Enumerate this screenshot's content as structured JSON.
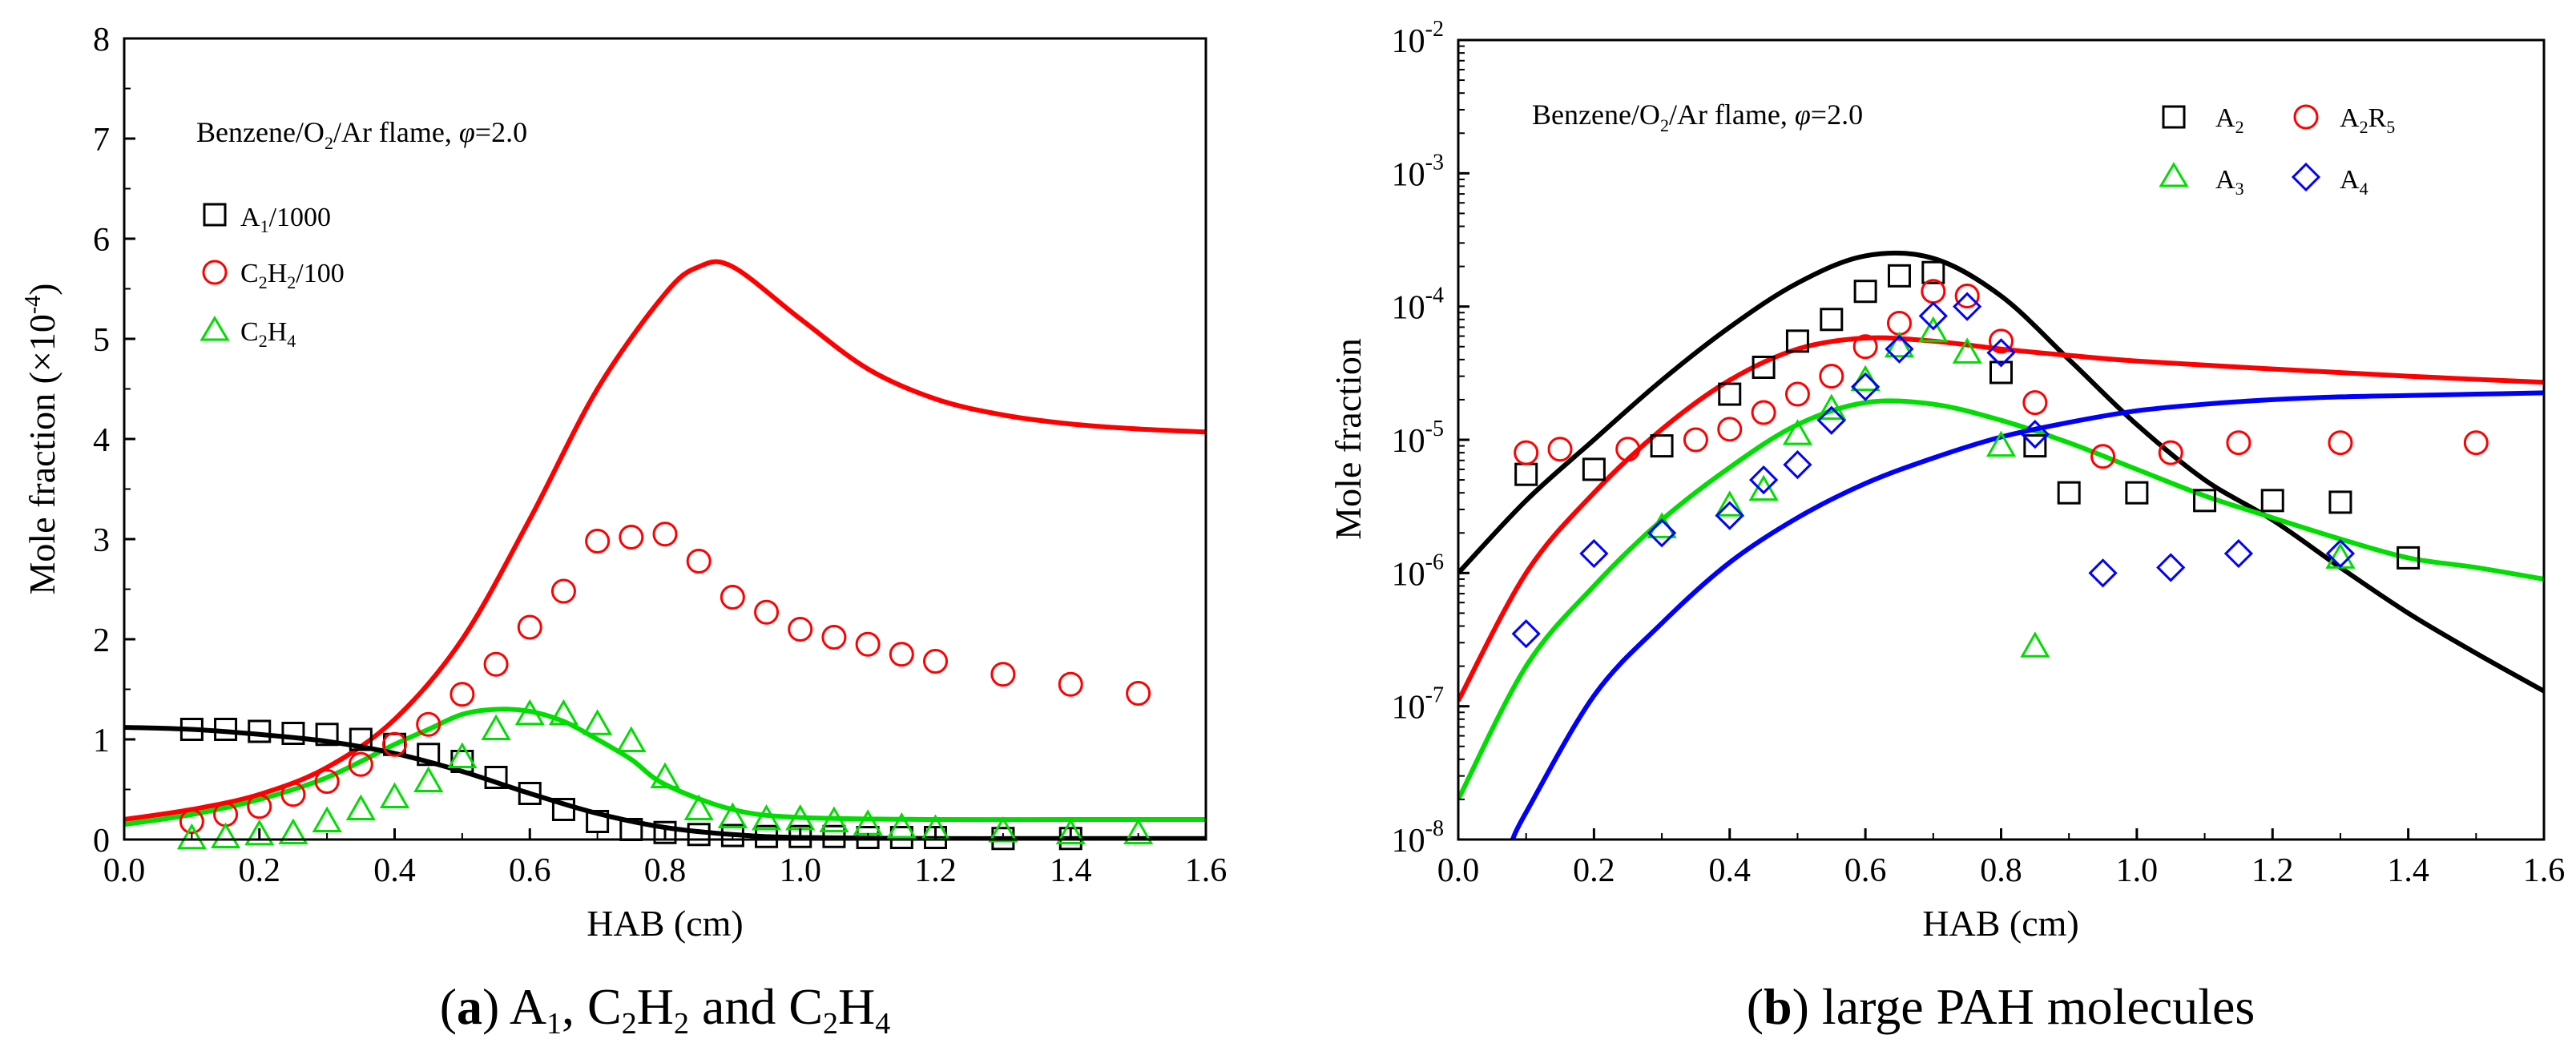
{
  "chart_data": [
    {
      "type": "scatter",
      "panel": "a",
      "caption": {
        "letter": "a",
        "text": "A1, C2H2 and C2H4"
      },
      "annotation": "Benzene/O2/Ar flame, φ=2.0",
      "xlabel": "HAB (cm)",
      "ylabel": "Mole fraction (×10⁻⁴)",
      "xlim": [
        0,
        1.6
      ],
      "ylim": [
        0,
        8
      ],
      "xticks": [
        "0.0",
        "0.2",
        "0.4",
        "0.6",
        "0.8",
        "1.0",
        "1.2",
        "1.4",
        "1.6"
      ],
      "yticks": [
        "0",
        "1",
        "2",
        "3",
        "4",
        "5",
        "6",
        "7",
        "8"
      ],
      "grid": false,
      "legend_position": "upper-left",
      "series": [
        {
          "name": "A1/1000",
          "marker": "square",
          "color": "#000000",
          "x": [
            0.1,
            0.15,
            0.2,
            0.25,
            0.3,
            0.35,
            0.4,
            0.45,
            0.5,
            0.55,
            0.6,
            0.65,
            0.7,
            0.75,
            0.8,
            0.85,
            0.9,
            0.95,
            1.0,
            1.05,
            1.1,
            1.15,
            1.2,
            1.3,
            1.4
          ],
          "y": [
            1.1,
            1.1,
            1.08,
            1.06,
            1.05,
            1.0,
            0.95,
            0.85,
            0.78,
            0.62,
            0.46,
            0.3,
            0.18,
            0.1,
            0.07,
            0.05,
            0.04,
            0.03,
            0.03,
            0.03,
            0.02,
            0.02,
            0.02,
            0.01,
            0.01
          ]
        },
        {
          "name": "C2H2/100",
          "marker": "circle",
          "color": "#ff0000",
          "x": [
            0.1,
            0.15,
            0.2,
            0.25,
            0.3,
            0.35,
            0.4,
            0.45,
            0.5,
            0.55,
            0.6,
            0.65,
            0.7,
            0.75,
            0.8,
            0.85,
            0.9,
            0.95,
            1.0,
            1.05,
            1.1,
            1.15,
            1.2,
            1.3,
            1.4,
            1.5
          ],
          "y": [
            0.18,
            0.25,
            0.33,
            0.45,
            0.58,
            0.75,
            0.95,
            1.15,
            1.45,
            1.75,
            2.12,
            2.48,
            2.98,
            3.02,
            3.05,
            2.78,
            2.42,
            2.27,
            2.1,
            2.02,
            1.95,
            1.85,
            1.78,
            1.65,
            1.55,
            1.46
          ]
        },
        {
          "name": "C2H4",
          "marker": "triangle",
          "color": "#00dd00",
          "x": [
            0.1,
            0.15,
            0.2,
            0.25,
            0.3,
            0.35,
            0.4,
            0.45,
            0.5,
            0.55,
            0.6,
            0.65,
            0.7,
            0.75,
            0.8,
            0.85,
            0.9,
            0.95,
            1.0,
            1.05,
            1.1,
            1.15,
            1.2,
            1.3,
            1.4,
            1.5
          ],
          "y": [
            0.01,
            0.02,
            0.05,
            0.06,
            0.18,
            0.3,
            0.42,
            0.58,
            0.82,
            1.1,
            1.25,
            1.25,
            1.15,
            0.98,
            0.62,
            0.3,
            0.22,
            0.2,
            0.2,
            0.18,
            0.15,
            0.12,
            0.1,
            0.08,
            0.06,
            0.06
          ]
        }
      ],
      "lines": [
        {
          "color": "#ff0000",
          "x": [
            0,
            0.1,
            0.2,
            0.3,
            0.4,
            0.5,
            0.6,
            0.7,
            0.8,
            0.85,
            0.9,
            1.0,
            1.1,
            1.2,
            1.3,
            1.4,
            1.5,
            1.6
          ],
          "y": [
            0.2,
            0.3,
            0.45,
            0.72,
            1.2,
            2.0,
            3.2,
            4.5,
            5.45,
            5.72,
            5.72,
            5.2,
            4.7,
            4.4,
            4.24,
            4.15,
            4.1,
            4.07
          ]
        },
        {
          "color": "#00dd00",
          "x": [
            0,
            0.1,
            0.2,
            0.3,
            0.4,
            0.45,
            0.5,
            0.55,
            0.6,
            0.65,
            0.7,
            0.75,
            0.8,
            0.9,
            1.0,
            1.2,
            1.4,
            1.6
          ],
          "y": [
            0.15,
            0.25,
            0.4,
            0.62,
            0.95,
            1.1,
            1.25,
            1.3,
            1.28,
            1.18,
            1.0,
            0.8,
            0.55,
            0.3,
            0.22,
            0.2,
            0.2,
            0.2
          ]
        },
        {
          "color": "#000000",
          "x": [
            0,
            0.1,
            0.2,
            0.3,
            0.4,
            0.5,
            0.6,
            0.7,
            0.8,
            0.9,
            1.0,
            1.2,
            1.4,
            1.6
          ],
          "y": [
            1.12,
            1.1,
            1.05,
            0.98,
            0.86,
            0.68,
            0.46,
            0.26,
            0.12,
            0.05,
            0.02,
            0.01,
            0.01,
            0.01
          ]
        }
      ]
    },
    {
      "type": "scatter",
      "panel": "b",
      "caption": {
        "letter": "b",
        "text": "large PAH molecules"
      },
      "annotation": "Benzene/O2/Ar flame, φ=2.0",
      "xlabel": "HAB (cm)",
      "ylabel": "Mole fraction",
      "yscale": "log",
      "xlim": [
        0,
        1.6
      ],
      "ylim": [
        1e-08,
        0.01
      ],
      "xticks": [
        "0.0",
        "0.2",
        "0.4",
        "0.6",
        "0.8",
        "1.0",
        "1.2",
        "1.4",
        "1.6"
      ],
      "yticks": [
        "10-8",
        "10-7",
        "10-6",
        "10-5",
        "10-4",
        "10-3",
        "10-2"
      ],
      "grid": false,
      "legend_position": "upper-right",
      "series": [
        {
          "name": "A2",
          "marker": "square",
          "color": "#000000",
          "x": [
            0.1,
            0.2,
            0.3,
            0.4,
            0.45,
            0.5,
            0.55,
            0.6,
            0.65,
            0.7,
            0.8,
            0.85,
            0.9,
            1.0,
            1.1,
            1.2,
            1.3,
            1.4
          ],
          "y": [
            5.5e-06,
            6e-06,
            9e-06,
            2.2e-05,
            3.5e-05,
            5.5e-05,
            8e-05,
            0.00013,
            0.00017,
            0.00018,
            3.2e-05,
            9e-06,
            4e-06,
            4e-06,
            3.5e-06,
            3.5e-06,
            3.4e-06,
            1.3e-06
          ]
        },
        {
          "name": "A2R5",
          "marker": "circle",
          "color": "#ff0000",
          "x": [
            0.1,
            0.15,
            0.25,
            0.35,
            0.4,
            0.45,
            0.5,
            0.55,
            0.6,
            0.65,
            0.7,
            0.75,
            0.8,
            0.85,
            0.95,
            1.05,
            1.15,
            1.3,
            1.5
          ],
          "y": [
            8e-06,
            8.5e-06,
            8.5e-06,
            1e-05,
            1.2e-05,
            1.6e-05,
            2.2e-05,
            3e-05,
            5e-05,
            7.5e-05,
            0.00013,
            0.00012,
            5.5e-05,
            1.9e-05,
            7.5e-06,
            8e-06,
            9.5e-06,
            9.5e-06,
            9.5e-06
          ]
        },
        {
          "name": "A3",
          "marker": "triangle",
          "color": "#00dd00",
          "x": [
            0.3,
            0.4,
            0.45,
            0.5,
            0.55,
            0.6,
            0.65,
            0.7,
            0.75,
            0.8,
            0.85,
            1.3
          ],
          "y": [
            2.2e-06,
            3.2e-06,
            4.2e-06,
            1.1e-05,
            1.7e-05,
            2.8e-05,
            5e-05,
            6.5e-05,
            4.5e-05,
            9e-06,
            2.8e-07,
            1.3e-06
          ]
        },
        {
          "name": "A4",
          "marker": "diamond",
          "color": "#0000ff",
          "x": [
            0.1,
            0.2,
            0.3,
            0.4,
            0.45,
            0.5,
            0.55,
            0.6,
            0.65,
            0.7,
            0.75,
            0.8,
            0.85,
            0.95,
            1.05,
            1.15,
            1.3
          ],
          "y": [
            3.5e-07,
            1.4e-06,
            2e-06,
            2.7e-06,
            5e-06,
            6.5e-06,
            1.4e-05,
            2.5e-05,
            4.8e-05,
            8.5e-05,
            0.0001,
            4.5e-05,
            1.1e-05,
            1e-06,
            1.1e-06,
            1.4e-06,
            1.4e-06
          ]
        }
      ],
      "lines": [
        {
          "color": "#000000",
          "x": [
            0,
            0.1,
            0.2,
            0.3,
            0.4,
            0.5,
            0.6,
            0.7,
            0.8,
            0.9,
            1.0,
            1.1,
            1.2,
            1.3,
            1.4,
            1.5,
            1.6
          ],
          "y": [
            1e-06,
            3.5e-06,
            1e-05,
            2.8e-05,
            7e-05,
            0.00015,
            0.00024,
            0.00023,
            0.00012,
            4e-05,
            1.3e-05,
            5e-06,
            2.5e-06,
            1.1e-06,
            5e-07,
            2.5e-07,
            1.3e-07
          ]
        },
        {
          "color": "#ff0000",
          "x": [
            0,
            0.1,
            0.2,
            0.3,
            0.4,
            0.5,
            0.6,
            0.7,
            0.8,
            0.9,
            1.0,
            1.2,
            1.4,
            1.6
          ],
          "y": [
            1.1e-07,
            1e-06,
            4e-06,
            1.2e-05,
            2.8e-05,
            4.8e-05,
            5.8e-05,
            5.5e-05,
            4.8e-05,
            4.3e-05,
            3.9e-05,
            3.4e-05,
            3e-05,
            2.7e-05
          ]
        },
        {
          "color": "#00dd00",
          "x": [
            0,
            0.1,
            0.2,
            0.3,
            0.4,
            0.5,
            0.6,
            0.7,
            0.8,
            0.9,
            1.0,
            1.1,
            1.2,
            1.3,
            1.4,
            1.5,
            1.6
          ],
          "y": [
            2e-08,
            2e-07,
            8e-07,
            2.5e-06,
            6.2e-06,
            1.3e-05,
            1.9e-05,
            1.85e-05,
            1.4e-05,
            9.5e-06,
            6e-06,
            3.8e-06,
            2.6e-06,
            1.8e-06,
            1.3e-06,
            1.1e-06,
            9e-07
          ]
        },
        {
          "color": "#0000ff",
          "x": [
            0.08,
            0.1,
            0.2,
            0.3,
            0.4,
            0.5,
            0.6,
            0.7,
            0.8,
            0.9,
            1.0,
            1.1,
            1.2,
            1.3,
            1.4,
            1.5,
            1.6
          ],
          "y": [
            1e-08,
            1.6e-08,
            1.2e-07,
            4.2e-07,
            1.2e-06,
            2.6e-06,
            4.7e-06,
            7.3e-06,
            1.05e-05,
            1.35e-05,
            1.65e-05,
            1.85e-05,
            2e-05,
            2.1e-05,
            2.15e-05,
            2.2e-05,
            2.25e-05
          ]
        }
      ]
    }
  ]
}
